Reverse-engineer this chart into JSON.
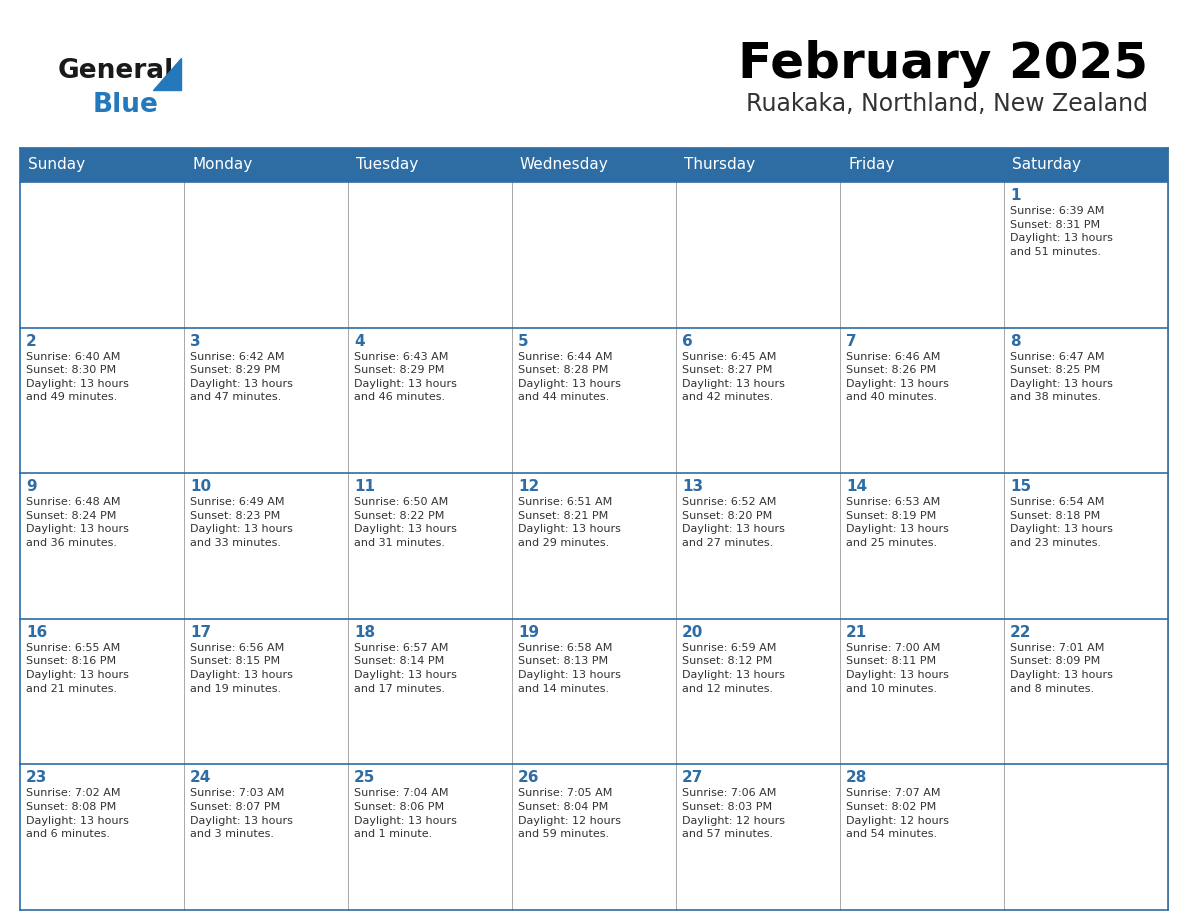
{
  "title": "February 2025",
  "subtitle": "Ruakaka, Northland, New Zealand",
  "header_bg": "#2E6DA4",
  "header_text_color": "#FFFFFF",
  "text_color": "#333333",
  "day_num_color": "#2E6DA4",
  "border_color": "#2E6DA4",
  "grid_line_color": "#AAAAAA",
  "bg_color": "#FFFFFF",
  "days_of_week": [
    "Sunday",
    "Monday",
    "Tuesday",
    "Wednesday",
    "Thursday",
    "Friday",
    "Saturday"
  ],
  "weeks": [
    [
      {
        "day": 0,
        "text": ""
      },
      {
        "day": 0,
        "text": ""
      },
      {
        "day": 0,
        "text": ""
      },
      {
        "day": 0,
        "text": ""
      },
      {
        "day": 0,
        "text": ""
      },
      {
        "day": 0,
        "text": ""
      },
      {
        "day": 1,
        "text": "Sunrise: 6:39 AM\nSunset: 8:31 PM\nDaylight: 13 hours\nand 51 minutes."
      }
    ],
    [
      {
        "day": 2,
        "text": "Sunrise: 6:40 AM\nSunset: 8:30 PM\nDaylight: 13 hours\nand 49 minutes."
      },
      {
        "day": 3,
        "text": "Sunrise: 6:42 AM\nSunset: 8:29 PM\nDaylight: 13 hours\nand 47 minutes."
      },
      {
        "day": 4,
        "text": "Sunrise: 6:43 AM\nSunset: 8:29 PM\nDaylight: 13 hours\nand 46 minutes."
      },
      {
        "day": 5,
        "text": "Sunrise: 6:44 AM\nSunset: 8:28 PM\nDaylight: 13 hours\nand 44 minutes."
      },
      {
        "day": 6,
        "text": "Sunrise: 6:45 AM\nSunset: 8:27 PM\nDaylight: 13 hours\nand 42 minutes."
      },
      {
        "day": 7,
        "text": "Sunrise: 6:46 AM\nSunset: 8:26 PM\nDaylight: 13 hours\nand 40 minutes."
      },
      {
        "day": 8,
        "text": "Sunrise: 6:47 AM\nSunset: 8:25 PM\nDaylight: 13 hours\nand 38 minutes."
      }
    ],
    [
      {
        "day": 9,
        "text": "Sunrise: 6:48 AM\nSunset: 8:24 PM\nDaylight: 13 hours\nand 36 minutes."
      },
      {
        "day": 10,
        "text": "Sunrise: 6:49 AM\nSunset: 8:23 PM\nDaylight: 13 hours\nand 33 minutes."
      },
      {
        "day": 11,
        "text": "Sunrise: 6:50 AM\nSunset: 8:22 PM\nDaylight: 13 hours\nand 31 minutes."
      },
      {
        "day": 12,
        "text": "Sunrise: 6:51 AM\nSunset: 8:21 PM\nDaylight: 13 hours\nand 29 minutes."
      },
      {
        "day": 13,
        "text": "Sunrise: 6:52 AM\nSunset: 8:20 PM\nDaylight: 13 hours\nand 27 minutes."
      },
      {
        "day": 14,
        "text": "Sunrise: 6:53 AM\nSunset: 8:19 PM\nDaylight: 13 hours\nand 25 minutes."
      },
      {
        "day": 15,
        "text": "Sunrise: 6:54 AM\nSunset: 8:18 PM\nDaylight: 13 hours\nand 23 minutes."
      }
    ],
    [
      {
        "day": 16,
        "text": "Sunrise: 6:55 AM\nSunset: 8:16 PM\nDaylight: 13 hours\nand 21 minutes."
      },
      {
        "day": 17,
        "text": "Sunrise: 6:56 AM\nSunset: 8:15 PM\nDaylight: 13 hours\nand 19 minutes."
      },
      {
        "day": 18,
        "text": "Sunrise: 6:57 AM\nSunset: 8:14 PM\nDaylight: 13 hours\nand 17 minutes."
      },
      {
        "day": 19,
        "text": "Sunrise: 6:58 AM\nSunset: 8:13 PM\nDaylight: 13 hours\nand 14 minutes."
      },
      {
        "day": 20,
        "text": "Sunrise: 6:59 AM\nSunset: 8:12 PM\nDaylight: 13 hours\nand 12 minutes."
      },
      {
        "day": 21,
        "text": "Sunrise: 7:00 AM\nSunset: 8:11 PM\nDaylight: 13 hours\nand 10 minutes."
      },
      {
        "day": 22,
        "text": "Sunrise: 7:01 AM\nSunset: 8:09 PM\nDaylight: 13 hours\nand 8 minutes."
      }
    ],
    [
      {
        "day": 23,
        "text": "Sunrise: 7:02 AM\nSunset: 8:08 PM\nDaylight: 13 hours\nand 6 minutes."
      },
      {
        "day": 24,
        "text": "Sunrise: 7:03 AM\nSunset: 8:07 PM\nDaylight: 13 hours\nand 3 minutes."
      },
      {
        "day": 25,
        "text": "Sunrise: 7:04 AM\nSunset: 8:06 PM\nDaylight: 13 hours\nand 1 minute."
      },
      {
        "day": 26,
        "text": "Sunrise: 7:05 AM\nSunset: 8:04 PM\nDaylight: 12 hours\nand 59 minutes."
      },
      {
        "day": 27,
        "text": "Sunrise: 7:06 AM\nSunset: 8:03 PM\nDaylight: 12 hours\nand 57 minutes."
      },
      {
        "day": 28,
        "text": "Sunrise: 7:07 AM\nSunset: 8:02 PM\nDaylight: 12 hours\nand 54 minutes."
      },
      {
        "day": 0,
        "text": ""
      }
    ]
  ],
  "logo_general_color": "#1A1A1A",
  "logo_blue_color": "#2479BD",
  "logo_triangle_color": "#2479BD",
  "title_fontsize": 36,
  "subtitle_fontsize": 17,
  "header_fontsize": 11,
  "day_num_fontsize": 11,
  "cell_text_fontsize": 8
}
